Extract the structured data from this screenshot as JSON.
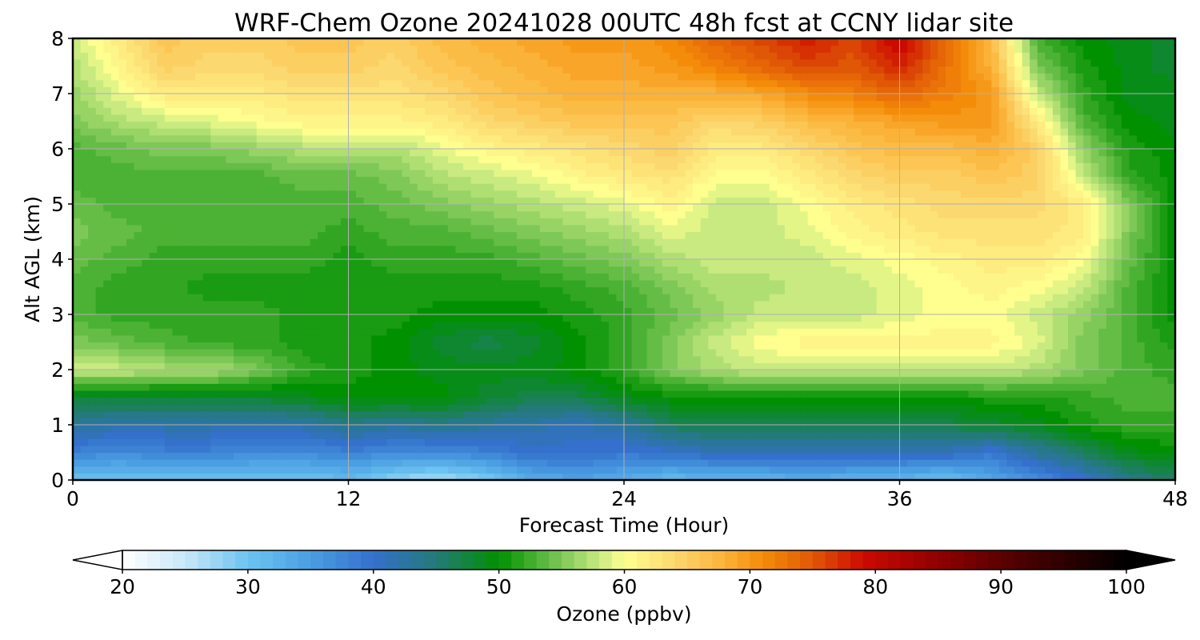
{
  "chart_data": {
    "type": "heatmap",
    "title": "WRF-Chem Ozone  20241028 00UTC 48h fcst at CCNY lidar site",
    "xlabel": "Forecast Time (Hour)",
    "ylabel": "Alt AGL (km)",
    "xlim": [
      0,
      48
    ],
    "ylim": [
      0,
      8
    ],
    "x_ticks": [
      "0",
      "12",
      "24",
      "36",
      "48"
    ],
    "y_ticks": [
      "0",
      "1",
      "2",
      "3",
      "4",
      "5",
      "6",
      "7",
      "8"
    ],
    "grid": true,
    "x": [
      0,
      2,
      4,
      6,
      8,
      10,
      12,
      14,
      16,
      18,
      20,
      22,
      24,
      26,
      28,
      30,
      32,
      34,
      36,
      38,
      40,
      42,
      44,
      46,
      48
    ],
    "y": [
      0,
      0.5,
      1,
      1.5,
      2,
      2.5,
      3,
      3.5,
      4,
      4.5,
      5,
      5.5,
      6,
      6.5,
      7,
      7.5,
      8
    ],
    "z": [
      [
        30,
        30,
        30,
        30,
        30,
        30,
        31,
        28,
        26,
        29,
        33,
        34,
        33,
        31,
        32,
        32,
        33,
        32,
        32,
        30,
        34,
        37,
        40,
        44,
        46
      ],
      [
        38,
        37,
        38,
        38,
        37,
        37,
        38,
        37,
        37,
        38,
        40,
        40,
        39,
        40,
        41,
        41,
        41,
        41,
        41,
        41,
        39,
        43,
        46,
        49,
        50
      ],
      [
        43,
        42,
        42,
        42,
        42,
        42,
        44,
        43,
        44,
        43,
        42,
        41,
        43,
        46,
        47,
        47,
        47,
        47,
        47,
        47,
        48,
        49,
        51,
        52,
        52
      ],
      [
        48,
        48,
        48,
        48,
        48,
        49,
        50,
        50,
        50,
        48,
        47,
        47,
        49,
        50,
        50,
        50,
        50,
        50,
        50,
        50,
        51,
        51,
        52,
        53,
        53
      ],
      [
        58,
        58,
        57,
        57,
        55,
        52,
        51,
        50,
        49,
        49,
        49,
        50,
        52,
        55,
        57,
        58,
        58,
        58,
        58,
        58,
        58,
        57,
        55,
        53,
        52
      ],
      [
        55,
        54,
        53,
        52,
        52,
        51,
        51,
        50,
        48,
        47,
        48,
        50,
        52,
        55,
        58,
        60,
        61,
        61,
        61,
        61,
        61,
        59,
        55,
        53,
        51
      ],
      [
        53,
        52,
        52,
        52,
        52,
        51,
        51,
        51,
        50,
        50,
        50,
        51,
        52,
        54,
        56,
        58,
        58,
        58,
        59,
        60,
        60,
        58,
        56,
        53,
        50
      ],
      [
        53,
        52,
        52,
        51,
        51,
        51,
        51,
        51,
        51,
        51,
        51,
        52,
        53,
        55,
        57,
        57,
        58,
        58,
        59,
        60,
        61,
        60,
        58,
        53,
        50
      ],
      [
        54,
        53,
        52,
        52,
        52,
        52,
        51,
        52,
        52,
        52,
        53,
        54,
        55,
        57,
        58,
        58,
        58,
        59,
        60,
        61,
        62,
        62,
        60,
        54,
        50
      ],
      [
        55,
        54,
        53,
        53,
        53,
        53,
        52,
        53,
        53,
        54,
        55,
        56,
        57,
        59,
        58,
        58,
        59,
        61,
        62,
        63,
        63,
        63,
        62,
        55,
        50
      ],
      [
        54,
        53,
        53,
        53,
        53,
        53,
        53,
        54,
        55,
        56,
        57,
        58,
        59,
        61,
        58,
        58,
        60,
        62,
        63,
        64,
        64,
        64,
        62,
        55,
        50
      ],
      [
        53,
        53,
        53,
        53,
        53,
        54,
        54,
        55,
        57,
        58,
        59,
        61,
        62,
        63,
        60,
        60,
        62,
        64,
        65,
        65,
        66,
        65,
        58,
        52,
        50
      ],
      [
        53,
        54,
        55,
        55,
        56,
        57,
        57,
        57,
        59,
        61,
        62,
        63,
        64,
        65,
        62,
        62,
        64,
        66,
        67,
        67,
        68,
        65,
        56,
        51,
        50
      ],
      [
        55,
        57,
        58,
        59,
        60,
        61,
        61,
        61,
        62,
        64,
        65,
        66,
        66,
        66,
        64,
        65,
        67,
        68,
        69,
        70,
        70,
        62,
        53,
        50,
        49
      ],
      [
        56,
        59,
        62,
        62,
        62,
        63,
        63,
        63,
        64,
        66,
        67,
        68,
        68,
        68,
        68,
        69,
        71,
        72,
        74,
        72,
        70,
        58,
        52,
        49,
        49
      ],
      [
        57,
        61,
        65,
        64,
        64,
        65,
        65,
        64,
        66,
        67,
        68,
        69,
        69,
        70,
        72,
        74,
        76,
        75,
        78,
        73,
        68,
        55,
        51,
        49,
        48
      ],
      [
        58,
        62,
        66,
        65,
        65,
        66,
        66,
        65,
        67,
        68,
        69,
        70,
        70,
        71,
        74,
        76,
        78,
        76,
        80,
        74,
        67,
        53,
        50,
        49,
        48
      ]
    ],
    "colorbar": {
      "label": "Ozone  (ppbv)",
      "min": 20,
      "max": 100,
      "step": 1,
      "ticks": [
        "20",
        "30",
        "40",
        "50",
        "60",
        "70",
        "80",
        "90",
        "100"
      ],
      "extend": "both",
      "stops": [
        {
          "v": 20,
          "c": "#ffffff"
        },
        {
          "v": 25,
          "c": "#c8e6f8"
        },
        {
          "v": 30,
          "c": "#6cc4f0"
        },
        {
          "v": 35,
          "c": "#4a9ee2"
        },
        {
          "v": 40,
          "c": "#3470cc"
        },
        {
          "v": 45,
          "c": "#247a78"
        },
        {
          "v": 50,
          "c": "#009000"
        },
        {
          "v": 55,
          "c": "#7ec858"
        },
        {
          "v": 58,
          "c": "#c8ea80"
        },
        {
          "v": 60,
          "c": "#ffff90"
        },
        {
          "v": 64,
          "c": "#fcd870"
        },
        {
          "v": 68,
          "c": "#fbb238"
        },
        {
          "v": 71,
          "c": "#f48c0a"
        },
        {
          "v": 75,
          "c": "#e05806"
        },
        {
          "v": 79,
          "c": "#cc0a00"
        },
        {
          "v": 85,
          "c": "#900000"
        },
        {
          "v": 92,
          "c": "#480000"
        },
        {
          "v": 100,
          "c": "#000000"
        }
      ]
    }
  }
}
